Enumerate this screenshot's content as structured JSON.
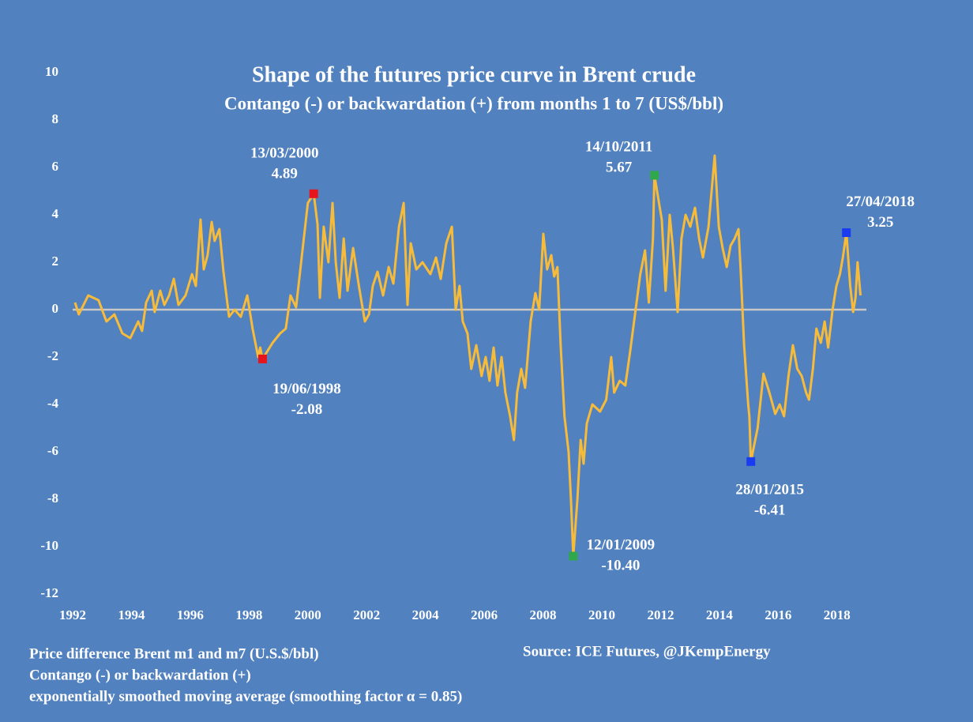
{
  "chart_data": {
    "type": "line",
    "title": "Shape of the futures price curve in Brent crude",
    "subtitle": "Contango (-) or backwardation (+) from months 1 to 7 (US$/bbl)",
    "notes": [
      "Price difference Brent m1 and m7 (U.S.$/bbl)",
      "Contango (-) or backwardation (+)",
      "exponentially smoothed  moving average (smoothing factor α = 0.85)"
    ],
    "source": "Source:  ICE Futures, @JKempEnergy",
    "xlim": [
      1992,
      2019
    ],
    "xticks": [
      1992,
      1994,
      1996,
      1998,
      2000,
      2002,
      2004,
      2006,
      2008,
      2010,
      2012,
      2014,
      2016,
      2018
    ],
    "ylim": [
      -12,
      10
    ],
    "yticks": [
      10,
      8,
      6,
      4,
      2,
      0,
      -2,
      -4,
      -6,
      -8,
      -10,
      -12
    ],
    "hline": 0,
    "hline_color": "#c8c8c8",
    "series": [
      {
        "color": "#f6bb3a",
        "x": [
          1992.08,
          1992.21,
          1992.53,
          1992.88,
          1993.15,
          1993.42,
          1993.69,
          1993.96,
          1994.23,
          1994.36,
          1994.5,
          1994.69,
          1994.79,
          1994.98,
          1995.12,
          1995.28,
          1995.44,
          1995.6,
          1995.84,
          1996.06,
          1996.19,
          1996.35,
          1996.46,
          1996.59,
          1996.73,
          1996.83,
          1996.99,
          1997.13,
          1997.32,
          1997.51,
          1997.72,
          1997.94,
          1998.12,
          1998.31,
          1998.38,
          1998.46,
          1998.8,
          1999.06,
          1999.25,
          1999.41,
          1999.6,
          1999.79,
          2000.0,
          2000.2,
          2000.33,
          2000.41,
          2000.54,
          2000.7,
          2000.84,
          2000.95,
          2001.08,
          2001.22,
          2001.35,
          2001.54,
          2001.75,
          2001.94,
          2002.08,
          2002.21,
          2002.37,
          2002.56,
          2002.75,
          2002.91,
          2003.1,
          2003.26,
          2003.39,
          2003.5,
          2003.69,
          2003.9,
          2004.17,
          2004.36,
          2004.52,
          2004.71,
          2004.9,
          2005.03,
          2005.16,
          2005.27,
          2005.43,
          2005.56,
          2005.73,
          2005.91,
          2006.05,
          2006.18,
          2006.32,
          2006.45,
          2006.59,
          2006.72,
          2006.88,
          2007.01,
          2007.12,
          2007.26,
          2007.39,
          2007.58,
          2007.74,
          2007.87,
          2008.01,
          2008.14,
          2008.28,
          2008.38,
          2008.49,
          2008.6,
          2008.73,
          2008.87,
          2008.95,
          2009.03,
          2009.17,
          2009.28,
          2009.38,
          2009.49,
          2009.68,
          2009.94,
          2010.15,
          2010.32,
          2010.42,
          2010.61,
          2010.8,
          2010.96,
          2011.15,
          2011.31,
          2011.47,
          2011.6,
          2011.74,
          2011.79,
          2012.04,
          2012.17,
          2012.31,
          2012.42,
          2012.58,
          2012.71,
          2012.85,
          2013.01,
          2013.17,
          2013.31,
          2013.44,
          2013.63,
          2013.84,
          2013.98,
          2014.11,
          2014.25,
          2014.38,
          2014.52,
          2014.65,
          2014.73,
          2014.84,
          2014.98,
          2015.02,
          2015.07,
          2015.3,
          2015.5,
          2015.7,
          2015.9,
          2016.05,
          2016.2,
          2016.35,
          2016.5,
          2016.65,
          2016.8,
          2016.95,
          2017.05,
          2017.18,
          2017.3,
          2017.45,
          2017.58,
          2017.7,
          2017.85,
          2017.98,
          2018.1,
          2018.2,
          2018.32,
          2018.45,
          2018.55,
          2018.63,
          2018.7,
          2018.8
        ],
        "values": [
          0.3,
          -0.2,
          0.6,
          0.4,
          -0.5,
          -0.2,
          -1.0,
          -1.2,
          -0.5,
          -0.9,
          0.3,
          0.8,
          -0.1,
          0.8,
          0.2,
          0.6,
          1.3,
          0.2,
          0.6,
          1.5,
          1.0,
          3.8,
          1.7,
          2.3,
          3.7,
          2.9,
          3.4,
          1.6,
          -0.3,
          0.0,
          -0.3,
          0.6,
          -0.8,
          -2.0,
          -1.6,
          -2.08,
          -1.4,
          -1.0,
          -0.8,
          0.6,
          0.1,
          2.2,
          4.5,
          4.89,
          3.6,
          0.5,
          3.5,
          2.0,
          4.5,
          2.0,
          0.5,
          3.0,
          0.8,
          2.6,
          0.9,
          -0.5,
          -0.2,
          1.0,
          1.6,
          0.6,
          1.8,
          1.1,
          3.5,
          4.5,
          0.2,
          2.8,
          1.7,
          2.0,
          1.5,
          2.2,
          1.3,
          2.8,
          3.5,
          0.0,
          1.0,
          -0.5,
          -1.0,
          -2.5,
          -1.5,
          -2.8,
          -2.0,
          -3.0,
          -1.6,
          -3.2,
          -2.0,
          -3.5,
          -4.5,
          -5.5,
          -3.5,
          -2.5,
          -3.3,
          -0.5,
          0.7,
          0.0,
          3.2,
          1.7,
          2.3,
          1.4,
          1.8,
          -1.5,
          -4.5,
          -6.0,
          -8.0,
          -10.4,
          -8.0,
          -5.5,
          -6.5,
          -4.8,
          -4.0,
          -4.3,
          -3.8,
          -2.0,
          -3.5,
          -3.0,
          -3.2,
          -1.8,
          0.0,
          1.5,
          2.5,
          0.3,
          3.0,
          5.67,
          3.8,
          0.8,
          4.0,
          2.6,
          -0.1,
          3.0,
          4.0,
          3.5,
          4.3,
          3.0,
          2.2,
          3.5,
          6.5,
          3.5,
          2.6,
          1.8,
          2.7,
          3.0,
          3.4,
          1.5,
          -1.5,
          -4.0,
          -4.5,
          -6.41,
          -5.0,
          -2.7,
          -3.5,
          -4.4,
          -4.0,
          -4.5,
          -2.8,
          -1.5,
          -2.5,
          -2.8,
          -3.5,
          -3.8,
          -2.5,
          -0.8,
          -1.4,
          -0.5,
          -1.6,
          0.0,
          1.0,
          1.5,
          2.2,
          3.25,
          1.0,
          -0.1,
          0.5,
          2.0,
          0.6
        ]
      }
    ],
    "annotations": [
      {
        "label": "13/03/2000",
        "x": 2000.2,
        "value": 4.89,
        "color": "#e8141c"
      },
      {
        "label": "19/06/1998",
        "x": 1998.46,
        "value": -2.08,
        "color": "#e8141c"
      },
      {
        "label": "14/10/2011",
        "x": 2011.79,
        "value": 5.67,
        "color": "#2ea84a"
      },
      {
        "label": "12/01/2009",
        "x": 2009.03,
        "value": -10.4,
        "value_label": "-10.40",
        "color": "#2ea84a"
      },
      {
        "label": "28/01/2015",
        "x": 2015.07,
        "value": -6.41,
        "color": "#1a3cf0"
      },
      {
        "label": "27/04/2018",
        "x": 2018.32,
        "value": 3.25,
        "color": "#1a3cf0"
      }
    ]
  }
}
